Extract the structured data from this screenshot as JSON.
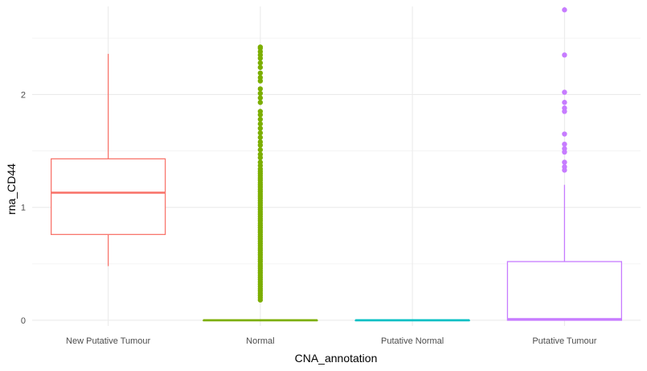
{
  "chart_data": {
    "type": "box",
    "xlabel": "CNA_annotation",
    "ylabel": "rna_CD44",
    "ylim": [
      -0.05,
      2.78
    ],
    "yticks": [
      0,
      1,
      2
    ],
    "grid": true,
    "legend": "none",
    "categories": [
      "New Putative Tumour",
      "Normal",
      "Putative Normal",
      "Putative Tumour"
    ],
    "series": [
      {
        "category": "New Putative Tumour",
        "color": "#F8766D",
        "whisker_low": 0.48,
        "q1": 0.76,
        "median": 1.13,
        "q3": 1.43,
        "whisker_high": 2.36,
        "outliers": []
      },
      {
        "category": "Normal",
        "color": "#7CAE00",
        "whisker_low": 0,
        "q1": 0,
        "median": 0,
        "q3": 0,
        "whisker_high": 0,
        "outliers": [
          0.18,
          0.2,
          0.22,
          0.24,
          0.26,
          0.28,
          0.3,
          0.32,
          0.34,
          0.36,
          0.38,
          0.4,
          0.42,
          0.44,
          0.46,
          0.48,
          0.5,
          0.52,
          0.54,
          0.56,
          0.58,
          0.6,
          0.62,
          0.64,
          0.66,
          0.68,
          0.7,
          0.72,
          0.74,
          0.76,
          0.78,
          0.8,
          0.82,
          0.84,
          0.86,
          0.88,
          0.9,
          0.92,
          0.94,
          0.96,
          0.98,
          1.0,
          1.02,
          1.04,
          1.06,
          1.08,
          1.1,
          1.12,
          1.14,
          1.16,
          1.18,
          1.2,
          1.22,
          1.24,
          1.26,
          1.28,
          1.3,
          1.32,
          1.34,
          1.37,
          1.4,
          1.44,
          1.47,
          1.51,
          1.55,
          1.58,
          1.62,
          1.66,
          1.7,
          1.74,
          1.78,
          1.82,
          1.85,
          1.93,
          1.97,
          2.01,
          2.05,
          2.12,
          2.15,
          2.19,
          2.24,
          2.28,
          2.32,
          2.35,
          2.38,
          2.41,
          2.42
        ]
      },
      {
        "category": "Putative Normal",
        "color": "#00BFC4",
        "whisker_low": 0,
        "q1": 0,
        "median": 0,
        "q3": 0,
        "whisker_high": 0,
        "outliers": []
      },
      {
        "category": "Putative Tumour",
        "color": "#C77CFF",
        "whisker_low": 0,
        "q1": 0,
        "median": 0.01,
        "q3": 0.52,
        "whisker_high": 1.2,
        "outliers": [
          1.33,
          1.36,
          1.4,
          1.49,
          1.52,
          1.56,
          1.65,
          1.85,
          1.88,
          1.93,
          2.02,
          2.35,
          2.75
        ]
      }
    ]
  }
}
